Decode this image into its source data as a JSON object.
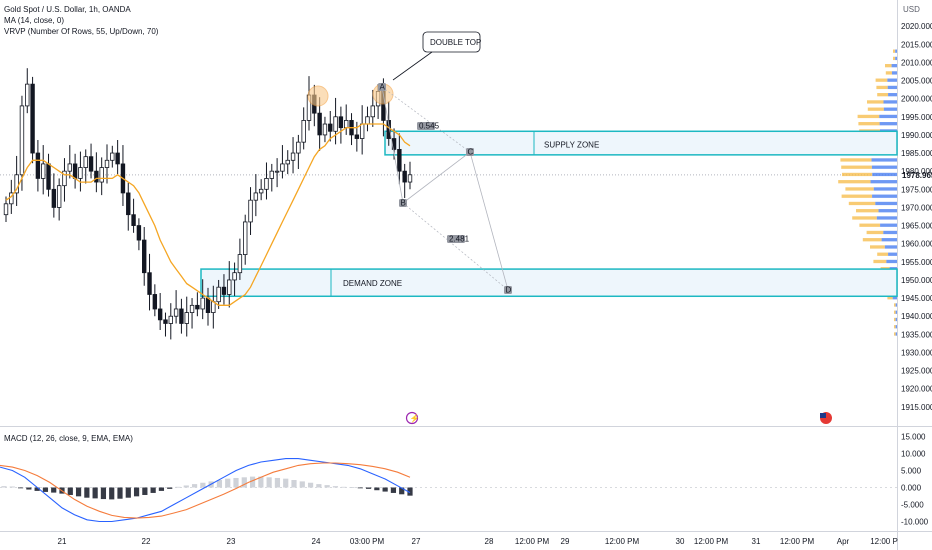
{
  "legend": {
    "symbol": "Gold Spot / U.S. Dollar, 1h, OANDA",
    "ma": "MA (14, close, 0)",
    "vrvp": "VRVP (Number Of Rows, 55, Up/Down, 70)",
    "macd": "MACD (12, 26, close, 9, EMA, EMA)"
  },
  "currency": "USD",
  "colors": {
    "up": "#131722",
    "down": "#131722",
    "ma": "#f5a623",
    "zone_border": "#1cb8c2",
    "zone_fill": "#eef6fc",
    "supply_text": "#e0337a",
    "demand_text": "#4caf50",
    "macd_line": "#2962ff",
    "signal_line": "#f57c3c",
    "hist_pos": "#cfd2d8",
    "hist_neg": "#363a45",
    "vp_up": "#4a7ef0",
    "vp_down": "#f5b944"
  },
  "annotations": {
    "double_top": "DOUBLE TOP",
    "supply_zone": "SUPPLY ZONE",
    "demand_zone": "DEMAND ZONE",
    "pattern_points": [
      "A",
      "B",
      "C",
      "D"
    ],
    "ratio_1": "0.545",
    "ratio_2": "2.481"
  },
  "chart_data": [
    {
      "type": "candlestick",
      "title": "Gold Spot / U.S. Dollar, 1h, OANDA",
      "ylim": [
        1910,
        2025
      ],
      "y_ticks": [
        "2020.000",
        "2015.000",
        "2010.000",
        "2005.000",
        "2000.000",
        "1995.000",
        "1990.000",
        "1985.000",
        "1980.000",
        "1975.000",
        "1970.000",
        "1965.000",
        "1960.000",
        "1955.000",
        "1950.000",
        "1945.000",
        "1940.000",
        "1935.000",
        "1930.000",
        "1925.000",
        "1920.000",
        "1915.000"
      ],
      "last_price": "1978.965",
      "x_ticks": [
        "21",
        "22",
        "23",
        "24",
        "03:00 PM",
        "27",
        "28",
        "12:00 PM",
        "29",
        "12:00 PM",
        "30",
        "12:00 PM",
        "31",
        "12:00 PM",
        "Apr",
        "12:00 P"
      ],
      "supply_zone": [
        1984.5,
        1991
      ],
      "demand_zone": [
        1945.5,
        1953
      ],
      "closes": [
        1971,
        1974,
        1979,
        1998,
        2004,
        1985,
        1978,
        1982,
        1975,
        1970,
        1976,
        1980,
        1982,
        1978,
        1981,
        1984,
        1980,
        1977,
        1981,
        1983,
        1985,
        1982,
        1974,
        1968,
        1965,
        1961,
        1952,
        1946,
        1942,
        1939,
        1938,
        1940,
        1942,
        1938,
        1941,
        1943,
        1942,
        1945,
        1941,
        1944,
        1948,
        1946,
        1950,
        1952,
        1957,
        1966,
        1972,
        1974,
        1975,
        1978,
        1980,
        1980,
        1982,
        1983,
        1985,
        1988,
        1994,
        2001,
        1996,
        1990,
        1993,
        1991,
        1995,
        1992,
        1994,
        1990,
        1989,
        1993,
        1995,
        1998,
        2002,
        1994,
        1989,
        1986,
        1980,
        1977,
        1979
      ],
      "ma_14": [
        1972,
        1973,
        1975,
        1978,
        1981,
        1983,
        1983,
        1983,
        1982,
        1981,
        1980,
        1979,
        1979,
        1978,
        1977,
        1977,
        1977,
        1978,
        1978,
        1978,
        1978,
        1979,
        1978,
        1977,
        1976,
        1974,
        1971,
        1968,
        1965,
        1961,
        1958,
        1955,
        1953,
        1951,
        1949,
        1948,
        1947,
        1946,
        1945,
        1944,
        1943,
        1943,
        1943,
        1944,
        1945,
        1946,
        1948,
        1951,
        1954,
        1957,
        1960,
        1963,
        1966,
        1969,
        1972,
        1975,
        1978,
        1981,
        1984,
        1986,
        1987,
        1989,
        1990,
        1991,
        1992,
        1992,
        1992,
        1993,
        1993,
        1993,
        1993,
        1993,
        1992,
        1991,
        1990,
        1988,
        1987
      ]
    },
    {
      "type": "bar",
      "title": "MACD (12, 26, close, 9, EMA, EMA)",
      "ylim": [
        -12.5,
        17.5
      ],
      "y_ticks": [
        "15.000",
        "10.000",
        "5.000",
        "0.000",
        "-5.000",
        "-10.000"
      ],
      "histogram": [
        0.4,
        0.3,
        -0.2,
        -0.6,
        -1,
        -1.3,
        -1.5,
        -1.8,
        -2.2,
        -2.6,
        -3,
        -3.2,
        -3.4,
        -3.5,
        -3.3,
        -3,
        -2.6,
        -2.2,
        -1.6,
        -1,
        -0.4,
        0.2,
        0.6,
        1,
        1.4,
        1.8,
        2.2,
        2.6,
        2.8,
        3,
        3.2,
        3.2,
        3,
        2.8,
        2.6,
        2.2,
        1.8,
        1.4,
        1,
        0.7,
        0.4,
        0.2,
        0.1,
        -0.2,
        -0.4,
        -0.8,
        -1.2,
        -1.6,
        -2,
        -2.4
      ],
      "macd": [
        6,
        5,
        3,
        0,
        -3,
        -6,
        -8,
        -9.5,
        -10,
        -10,
        -9.5,
        -9,
        -8,
        -7,
        -5,
        -3,
        -1,
        1,
        3,
        5,
        6.5,
        7.5,
        8,
        8.5,
        8.5,
        8,
        7.5,
        7,
        6.5,
        5.5,
        4,
        2.5,
        0.5,
        -1.5
      ],
      "signal": [
        6.5,
        6,
        5,
        3.5,
        1.5,
        -1,
        -3.5,
        -5.5,
        -7,
        -8.2,
        -8.8,
        -9,
        -8.8,
        -8.4,
        -7.5,
        -6.5,
        -5,
        -3.5,
        -2,
        -0.3,
        1.5,
        3,
        4.5,
        5.5,
        6.5,
        7,
        7.2,
        7.2,
        7,
        6.7,
        6.2,
        5.5,
        4.5,
        3
      ]
    }
  ]
}
